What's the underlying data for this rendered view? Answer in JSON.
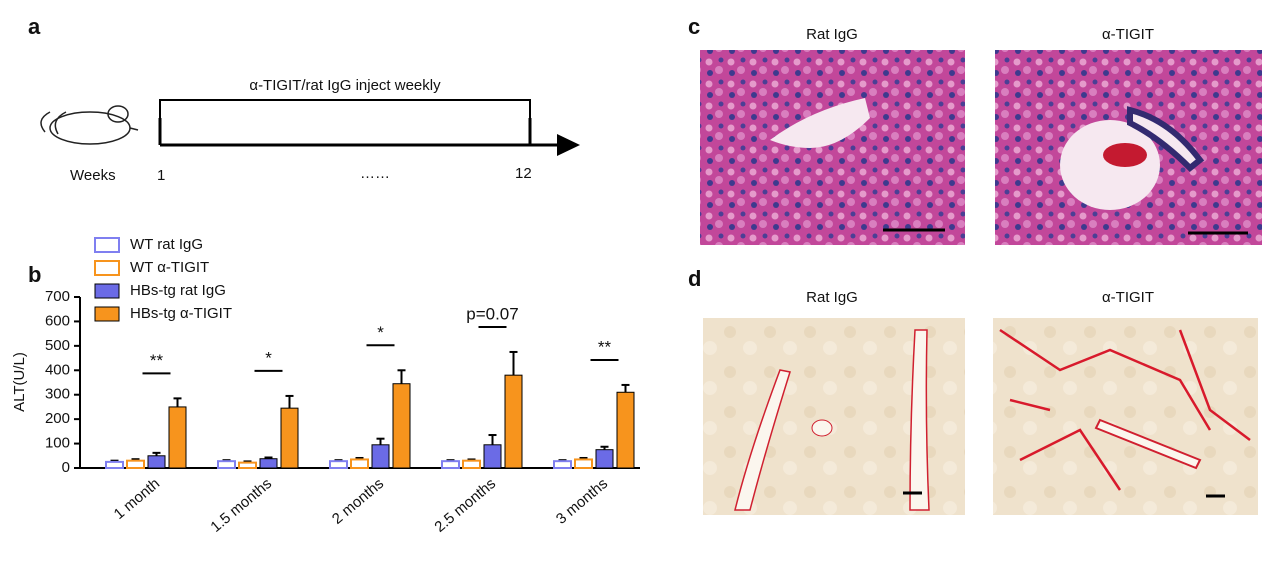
{
  "panel_a": {
    "label": "a",
    "bracket_text": "α-TIGIT/rat IgG  inject weekly",
    "axis_label": "Weeks",
    "start": "1",
    "ellipsis": "……",
    "end": "12"
  },
  "chart_data": {
    "type": "bar",
    "panel_label": "b",
    "y_label": "ALT(U/L)",
    "categories": [
      "1 month",
      "1.5 months",
      "2 months",
      "2.5 months",
      "3 months"
    ],
    "series": [
      {
        "name": "WT rat IgG",
        "color": "#7f7ff0",
        "filled": false,
        "values": [
          25,
          28,
          28,
          28,
          28
        ],
        "errors": [
          5,
          4,
          4,
          4,
          4
        ]
      },
      {
        "name": "WT α-TIGIT",
        "color": "#f7941d",
        "filled": false,
        "values": [
          30,
          22,
          35,
          30,
          35
        ],
        "errors": [
          6,
          5,
          6,
          5,
          6
        ]
      },
      {
        "name": "HBs-tg rat IgG",
        "color": "#6b6be6",
        "filled": true,
        "values": [
          50,
          38,
          95,
          95,
          75
        ],
        "errors": [
          12,
          5,
          25,
          40,
          12
        ]
      },
      {
        "name": "HBs-tg α-TIGIT",
        "color": "#f7941d",
        "filled": true,
        "values": [
          250,
          245,
          345,
          380,
          310
        ],
        "errors": [
          35,
          50,
          55,
          95,
          30
        ]
      }
    ],
    "annotations": [
      "**",
      "*",
      "*",
      "p=0.07",
      "**"
    ],
    "ylim": [
      0,
      700
    ],
    "yticks": [
      0,
      100,
      200,
      300,
      400,
      500,
      600,
      700
    ]
  },
  "panel_c": {
    "label": "c",
    "images": [
      {
        "title": "Rat IgG"
      },
      {
        "title": "α-TIGIT"
      }
    ]
  },
  "panel_d": {
    "label": "d",
    "images": [
      {
        "title": "Rat IgG"
      },
      {
        "title": "α-TIGIT"
      }
    ]
  }
}
